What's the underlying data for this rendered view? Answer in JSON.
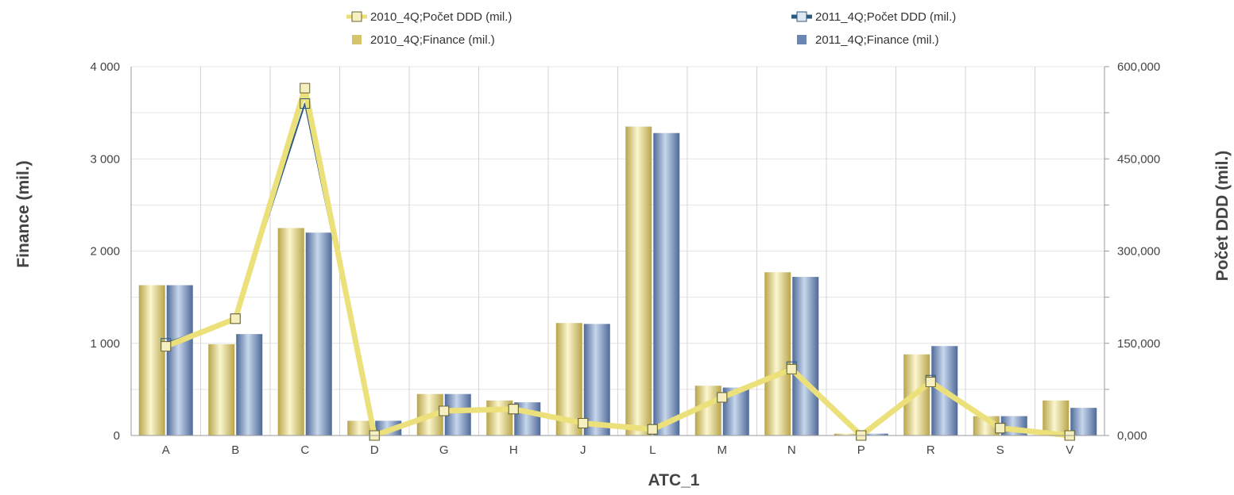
{
  "chart_data": {
    "type": "bar",
    "xlabel": "ATC_1",
    "ylabel_left": "Finance (mil.)",
    "ylabel_right": "Počet DDD (mil.)",
    "categories": [
      "A",
      "B",
      "C",
      "D",
      "G",
      "H",
      "J",
      "L",
      "M",
      "N",
      "P",
      "R",
      "S",
      "V"
    ],
    "ylim_left": [
      0,
      4000
    ],
    "ylim_right": [
      0,
      600000
    ],
    "left_ticks": [
      "0",
      "1 000",
      "2 000",
      "3 000",
      "4 000"
    ],
    "right_ticks": [
      "0,000",
      "150,000",
      "300,000",
      "450,000",
      "600,000"
    ],
    "grid": true,
    "legend_position": "top",
    "bar_series": [
      {
        "name": "2010_4Q;Finance (mil.)",
        "color": "#d4c46a",
        "values": [
          1630,
          990,
          2250,
          160,
          450,
          380,
          1220,
          3350,
          540,
          1770,
          20,
          880,
          210,
          380
        ]
      },
      {
        "name": "2011_4Q;Finance (mil.)",
        "color": "#6b86b3",
        "values": [
          1630,
          1100,
          2200,
          160,
          450,
          360,
          1210,
          3280,
          520,
          1720,
          20,
          970,
          210,
          300
        ]
      }
    ],
    "line_series": [
      {
        "name": "2010_4Q;Počet DDD (mil.)",
        "color": "#ece07a",
        "values": [
          145000,
          190000,
          565000,
          0,
          40000,
          43000,
          20000,
          10000,
          62000,
          108000,
          0,
          87000,
          12000,
          0
        ]
      },
      {
        "name": "2011_4Q;Počet DDD (mil.)",
        "color": "#2c5a7e",
        "values": [
          150000,
          190000,
          540000,
          0,
          40000,
          43000,
          20000,
          10000,
          62000,
          112000,
          0,
          90000,
          12000,
          0
        ]
      }
    ]
  }
}
